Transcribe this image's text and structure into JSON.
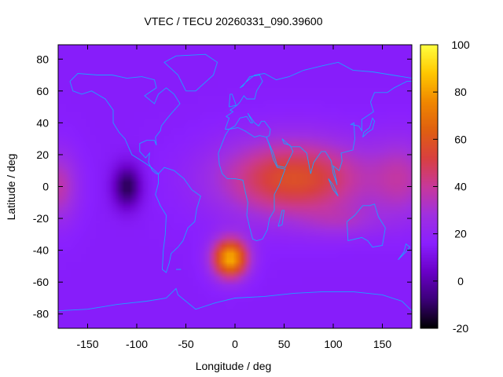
{
  "chart_data": {
    "type": "heatmap",
    "title": "VTEC / TECU 20260331_090.39600",
    "xlabel": "Longitude / deg",
    "ylabel": "Latitude / deg",
    "xlim": [
      -180,
      180
    ],
    "ylim": [
      -89,
      89
    ],
    "x_ticks": [
      -150,
      -100,
      -50,
      0,
      50,
      100,
      150
    ],
    "y_ticks": [
      -80,
      -60,
      -40,
      -20,
      0,
      20,
      40,
      60,
      80
    ],
    "colorbar": {
      "range": [
        -20,
        100
      ],
      "ticks": [
        -20,
        0,
        20,
        40,
        60,
        80,
        100
      ],
      "palette": [
        "#000000",
        "#3b0078",
        "#6a00c8",
        "#8a20ff",
        "#a030e0",
        "#c8389a",
        "#d84040",
        "#e06010",
        "#f08800",
        "#ffc800",
        "#ffff40"
      ]
    },
    "features": {
      "background_level": 15,
      "equatorial_band_peak": 58,
      "south_atlantic_peak": 92,
      "pacific_minimum": -12
    },
    "overlay": {
      "coastlines": true,
      "coastline_color": "#1ea0ff"
    },
    "grid": false
  }
}
